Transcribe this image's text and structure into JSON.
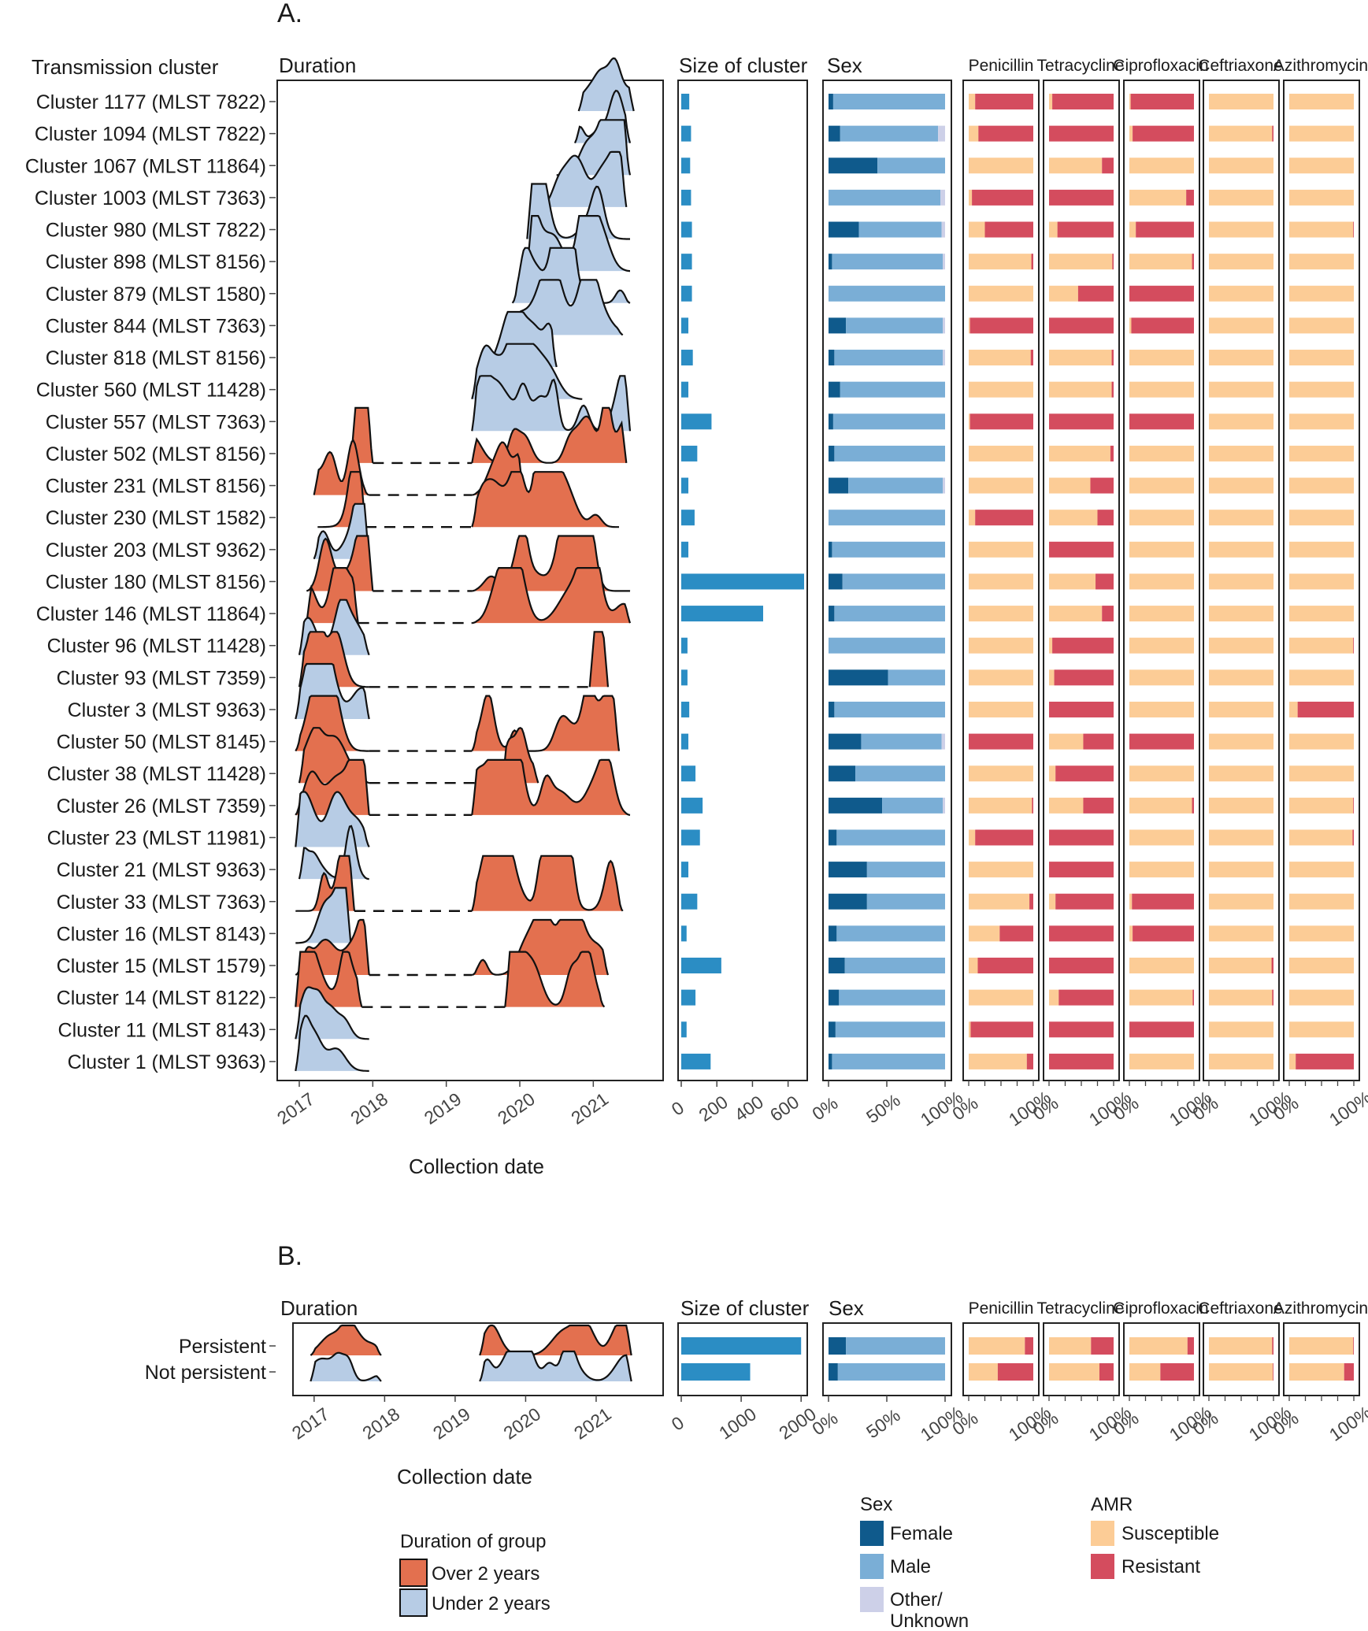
{
  "colors": {
    "over2": "#e3704f",
    "under2": "#b7cce5",
    "female": "#0f5a8c",
    "male": "#7aaed6",
    "other": "#cdd0e8",
    "susceptible": "#fccc96",
    "resistant": "#d44c5e",
    "size_bar": "#2b8dc4"
  },
  "chart_data": [
    {
      "type": "table",
      "panel": "A.",
      "row_header": "Transmission cluster",
      "columns": {
        "duration": "Duration",
        "size": "Size of cluster",
        "sex": "Sex",
        "amr": [
          "Penicillin",
          "Tetracycline",
          "Ciprofloxacin",
          "Ceftriaxone",
          "Azithromycin"
        ]
      },
      "x_axis": {
        "title": "Collection date",
        "ticks": [
          "2017",
          "2018",
          "2019",
          "2020",
          "2021"
        ],
        "range": [
          2016.7,
          2021.95
        ]
      },
      "size_axis": {
        "ticks": [
          "0",
          "200",
          "400",
          "600"
        ],
        "range": [
          0,
          690
        ]
      },
      "pct_ticks": [
        "0%",
        "50%",
        "100%"
      ],
      "amr_pct_ticks": [
        "0%",
        "100%"
      ],
      "rows": [
        {
          "label": "Cluster 1177 (MLST 7822)",
          "group": "under2",
          "start": 2020.8,
          "end": 2021.55,
          "size": 45,
          "female": 4,
          "other": 0,
          "res": [
            90,
            95,
            98,
            0,
            0
          ]
        },
        {
          "label": "Cluster 1094 (MLST 7822)",
          "group": "under2",
          "start": 2020.75,
          "end": 2021.5,
          "size": 55,
          "female": 10,
          "other": 6,
          "res": [
            85,
            100,
            95,
            2,
            0
          ]
        },
        {
          "label": "Cluster 1067 (MLST 11864)",
          "group": "under2",
          "start": 2020.5,
          "end": 2021.5,
          "size": 50,
          "female": 42,
          "other": 0,
          "res": [
            0,
            18,
            0,
            0,
            0
          ]
        },
        {
          "label": "Cluster 1003 (MLST 7363)",
          "group": "under2",
          "start": 2020.2,
          "end": 2021.45,
          "size": 55,
          "female": 0,
          "other": 4,
          "res": [
            95,
            100,
            12,
            0,
            0
          ]
        },
        {
          "label": "Cluster 980 (MLST 7822)",
          "group": "under2",
          "start": 2020.1,
          "end": 2021.5,
          "size": 60,
          "female": 26,
          "other": 3,
          "res": [
            75,
            87,
            90,
            0,
            1
          ]
        },
        {
          "label": "Cluster 898 (MLST 8156)",
          "group": "under2",
          "start": 2020.1,
          "end": 2021.5,
          "size": 60,
          "female": 3,
          "other": 2,
          "res": [
            3,
            2,
            3,
            0,
            0
          ]
        },
        {
          "label": "Cluster 879 (MLST 1580)",
          "group": "under2",
          "start": 2019.9,
          "end": 2021.5,
          "size": 60,
          "female": 0,
          "other": 0,
          "res": [
            0,
            55,
            100,
            0,
            0
          ]
        },
        {
          "label": "Cluster 844 (MLST 7363)",
          "group": "under2",
          "start": 2019.95,
          "end": 2021.4,
          "size": 40,
          "female": 15,
          "other": 2,
          "res": [
            98,
            100,
            97,
            0,
            0
          ]
        },
        {
          "label": "Cluster 818 (MLST 8156)",
          "group": "under2",
          "start": 2019.6,
          "end": 2020.5,
          "size": 65,
          "female": 5,
          "other": 2,
          "res": [
            4,
            3,
            0,
            0,
            0
          ]
        },
        {
          "label": "Cluster 560 (MLST 11428)",
          "group": "under2",
          "start": 2019.35,
          "end": 2020.85,
          "size": 40,
          "female": 10,
          "other": 0,
          "res": [
            0,
            3,
            0,
            0,
            0
          ]
        },
        {
          "label": "Cluster 557 (MLST 7363)",
          "group": "under2",
          "start": 2019.35,
          "end": 2021.5,
          "size": 170,
          "female": 4,
          "other": 0,
          "res": [
            98,
            100,
            100,
            0,
            0
          ]
        },
        {
          "label": "Cluster 502 (MLST 8156)",
          "group": "over2",
          "start": 2017.7,
          "end": 2021.45,
          "gap": [
            2018.0,
            2019.35
          ],
          "size": 90,
          "female": 5,
          "other": 0,
          "res": [
            0,
            5,
            0,
            0,
            0
          ]
        },
        {
          "label": "Cluster 231 (MLST 8156)",
          "group": "over2",
          "start": 2017.2,
          "end": 2020.05,
          "gap": [
            2017.95,
            2019.35
          ],
          "size": 40,
          "female": 17,
          "other": 2,
          "res": [
            0,
            36,
            0,
            0,
            0
          ]
        },
        {
          "label": "Cluster 230 (MLST 1582)",
          "group": "over2",
          "start": 2017.25,
          "end": 2021.35,
          "gap": [
            2017.9,
            2019.35
          ],
          "size": 75,
          "female": 0,
          "other": 0,
          "res": [
            90,
            25,
            0,
            0,
            0
          ]
        },
        {
          "label": "Cluster 203 (MLST 9362)",
          "group": "under2",
          "start": 2017.2,
          "end": 2017.95,
          "size": 40,
          "female": 3,
          "other": 0,
          "res": [
            0,
            100,
            0,
            0,
            0
          ]
        },
        {
          "label": "Cluster 180 (MLST 8156)",
          "group": "over2",
          "start": 2017.1,
          "end": 2021.5,
          "gap": [
            2018.0,
            2019.35
          ],
          "size": 690,
          "female": 12,
          "other": 0,
          "res": [
            0,
            28,
            0,
            0,
            0
          ]
        },
        {
          "label": "Cluster 146 (MLST 11864)",
          "group": "over2",
          "start": 2017.1,
          "end": 2021.5,
          "gap": [
            2017.8,
            2019.35
          ],
          "size": 460,
          "female": 5,
          "other": 0,
          "res": [
            0,
            18,
            0,
            0,
            0
          ]
        },
        {
          "label": "Cluster 96 (MLST 11428)",
          "group": "under2",
          "start": 2017.0,
          "end": 2017.95,
          "size": 35,
          "female": 0,
          "other": 0,
          "res": [
            0,
            95,
            0,
            0,
            1
          ]
        },
        {
          "label": "Cluster 93 (MLST 7359)",
          "group": "over2",
          "start": 2017.0,
          "end": 2021.2,
          "gap": [
            2017.95,
            2020.95
          ],
          "size": 35,
          "female": 51,
          "other": 0,
          "res": [
            0,
            92,
            0,
            0,
            0
          ]
        },
        {
          "label": "Cluster 3 (MLST 9363)",
          "group": "under2",
          "start": 2016.95,
          "end": 2017.95,
          "size": 45,
          "female": 5,
          "other": 0,
          "res": [
            0,
            100,
            0,
            0,
            87
          ]
        },
        {
          "label": "Cluster 50 (MLST 8145)",
          "group": "over2",
          "start": 2016.95,
          "end": 2021.35,
          "gap": [
            2017.95,
            2019.35
          ],
          "size": 40,
          "female": 28,
          "other": 3,
          "res": [
            100,
            47,
            100,
            0,
            0
          ]
        },
        {
          "label": "Cluster 38 (MLST 11428)",
          "group": "over2",
          "start": 2017.0,
          "end": 2020.25,
          "gap": [
            2017.95,
            2019.75
          ],
          "size": 80,
          "female": 23,
          "other": 0,
          "res": [
            0,
            90,
            0,
            0,
            0
          ]
        },
        {
          "label": "Cluster 26 (MLST 7359)",
          "group": "over2",
          "start": 2016.95,
          "end": 2021.5,
          "gap": [
            2017.95,
            2019.35
          ],
          "size": 120,
          "female": 46,
          "other": 2,
          "res": [
            2,
            47,
            3,
            0,
            1
          ]
        },
        {
          "label": "Cluster 23 (MLST 11981)",
          "group": "under2",
          "start": 2016.95,
          "end": 2017.95,
          "size": 105,
          "female": 7,
          "other": 0,
          "res": [
            90,
            100,
            0,
            0,
            2
          ]
        },
        {
          "label": "Cluster 21 (MLST 9363)",
          "group": "under2",
          "start": 2017.0,
          "end": 2017.95,
          "size": 40,
          "female": 33,
          "other": 0,
          "res": [
            0,
            100,
            0,
            0,
            0
          ]
        },
        {
          "label": "Cluster 33 (MLST 7363)",
          "group": "over2",
          "start": 2016.95,
          "end": 2021.4,
          "gap": [
            2017.75,
            2019.35
          ],
          "size": 90,
          "female": 33,
          "other": 0,
          "res": [
            6,
            90,
            96,
            0,
            0
          ]
        },
        {
          "label": "Cluster 16 (MLST 8143)",
          "group": "under2",
          "start": 2016.95,
          "end": 2017.7,
          "size": 30,
          "female": 7,
          "other": 0,
          "res": [
            52,
            100,
            95,
            0,
            0
          ]
        },
        {
          "label": "Cluster 15 (MLST 1579)",
          "group": "over2",
          "start": 2016.95,
          "end": 2021.2,
          "gap": [
            2017.95,
            2019.35
          ],
          "size": 225,
          "female": 14,
          "other": 0,
          "res": [
            86,
            100,
            0,
            3,
            0
          ]
        },
        {
          "label": "Cluster 14 (MLST 8122)",
          "group": "over2",
          "start": 2016.95,
          "end": 2021.15,
          "gap": [
            2017.85,
            2019.8
          ],
          "size": 80,
          "female": 9,
          "other": 0,
          "res": [
            0,
            85,
            2,
            2,
            0
          ]
        },
        {
          "label": "Cluster 11 (MLST 8143)",
          "group": "under2",
          "start": 2016.95,
          "end": 2017.95,
          "size": 30,
          "female": 6,
          "other": 0,
          "res": [
            97,
            100,
            100,
            0,
            0
          ]
        },
        {
          "label": "Cluster 1 (MLST 9363)",
          "group": "under2",
          "start": 2016.95,
          "end": 2017.95,
          "size": 165,
          "female": 3,
          "other": 0,
          "res": [
            10,
            100,
            0,
            0,
            90
          ]
        }
      ]
    },
    {
      "type": "table",
      "panel": "B.",
      "x_axis": {
        "title": "Collection date",
        "ticks": [
          "2017",
          "2018",
          "2019",
          "2020",
          "2021"
        ],
        "range": [
          2016.7,
          2021.95
        ]
      },
      "size_axis": {
        "ticks": [
          "0",
          "1000",
          "2000"
        ],
        "range": [
          0,
          2050
        ]
      },
      "rows": [
        {
          "label": "Persistent",
          "group": "over2",
          "segments": [
            [
              2016.95,
              2017.95
            ],
            [
              2019.35,
              2021.5
            ]
          ],
          "size": 2000,
          "female": 15,
          "other": 0,
          "res": [
            13,
            35,
            10,
            2,
            1
          ]
        },
        {
          "label": "Not persistent",
          "group": "under2",
          "segments": [
            [
              2016.95,
              2017.95
            ],
            [
              2019.35,
              2021.5
            ]
          ],
          "size": 1150,
          "female": 8,
          "other": 0,
          "res": [
            55,
            22,
            52,
            1,
            15
          ]
        }
      ]
    }
  ],
  "legends": {
    "duration": {
      "title": "Duration of group",
      "items": [
        "Over 2 years",
        "Under 2 years"
      ]
    },
    "sex": {
      "title": "Sex",
      "items": [
        "Female",
        "Male",
        "Other/",
        "Unknown"
      ]
    },
    "amr": {
      "title": "AMR",
      "items": [
        "Susceptible",
        "Resistant"
      ]
    }
  }
}
